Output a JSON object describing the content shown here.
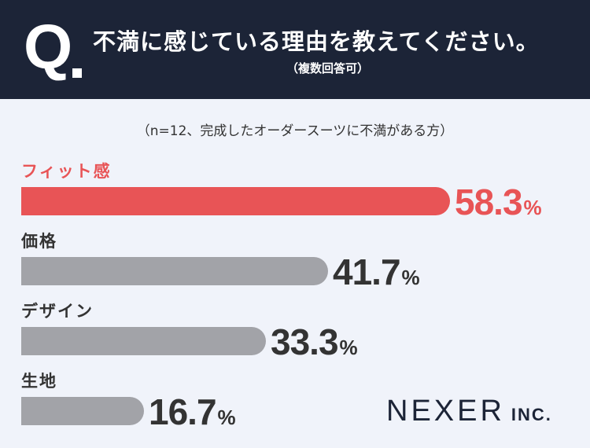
{
  "header": {
    "q_mark": "Q",
    "question": "不満に感じている理由を教えてください。",
    "note": "（複数回答可）"
  },
  "sample_note": "（n=12、完成したオーダースーツに不満がある方）",
  "chart_data": {
    "type": "bar",
    "orientation": "horizontal",
    "categories": [
      "フィット感",
      "価格",
      "デザイン",
      "生地"
    ],
    "values": [
      58.3,
      41.7,
      33.3,
      16.7
    ],
    "unit": "%",
    "xlim": [
      0,
      100
    ],
    "grid": false,
    "highlight_color": "#e85456",
    "bar_color": "#a2a3a8",
    "label_color": "#333333"
  },
  "logo": {
    "main": "NEXER",
    "suffix": "INC."
  }
}
